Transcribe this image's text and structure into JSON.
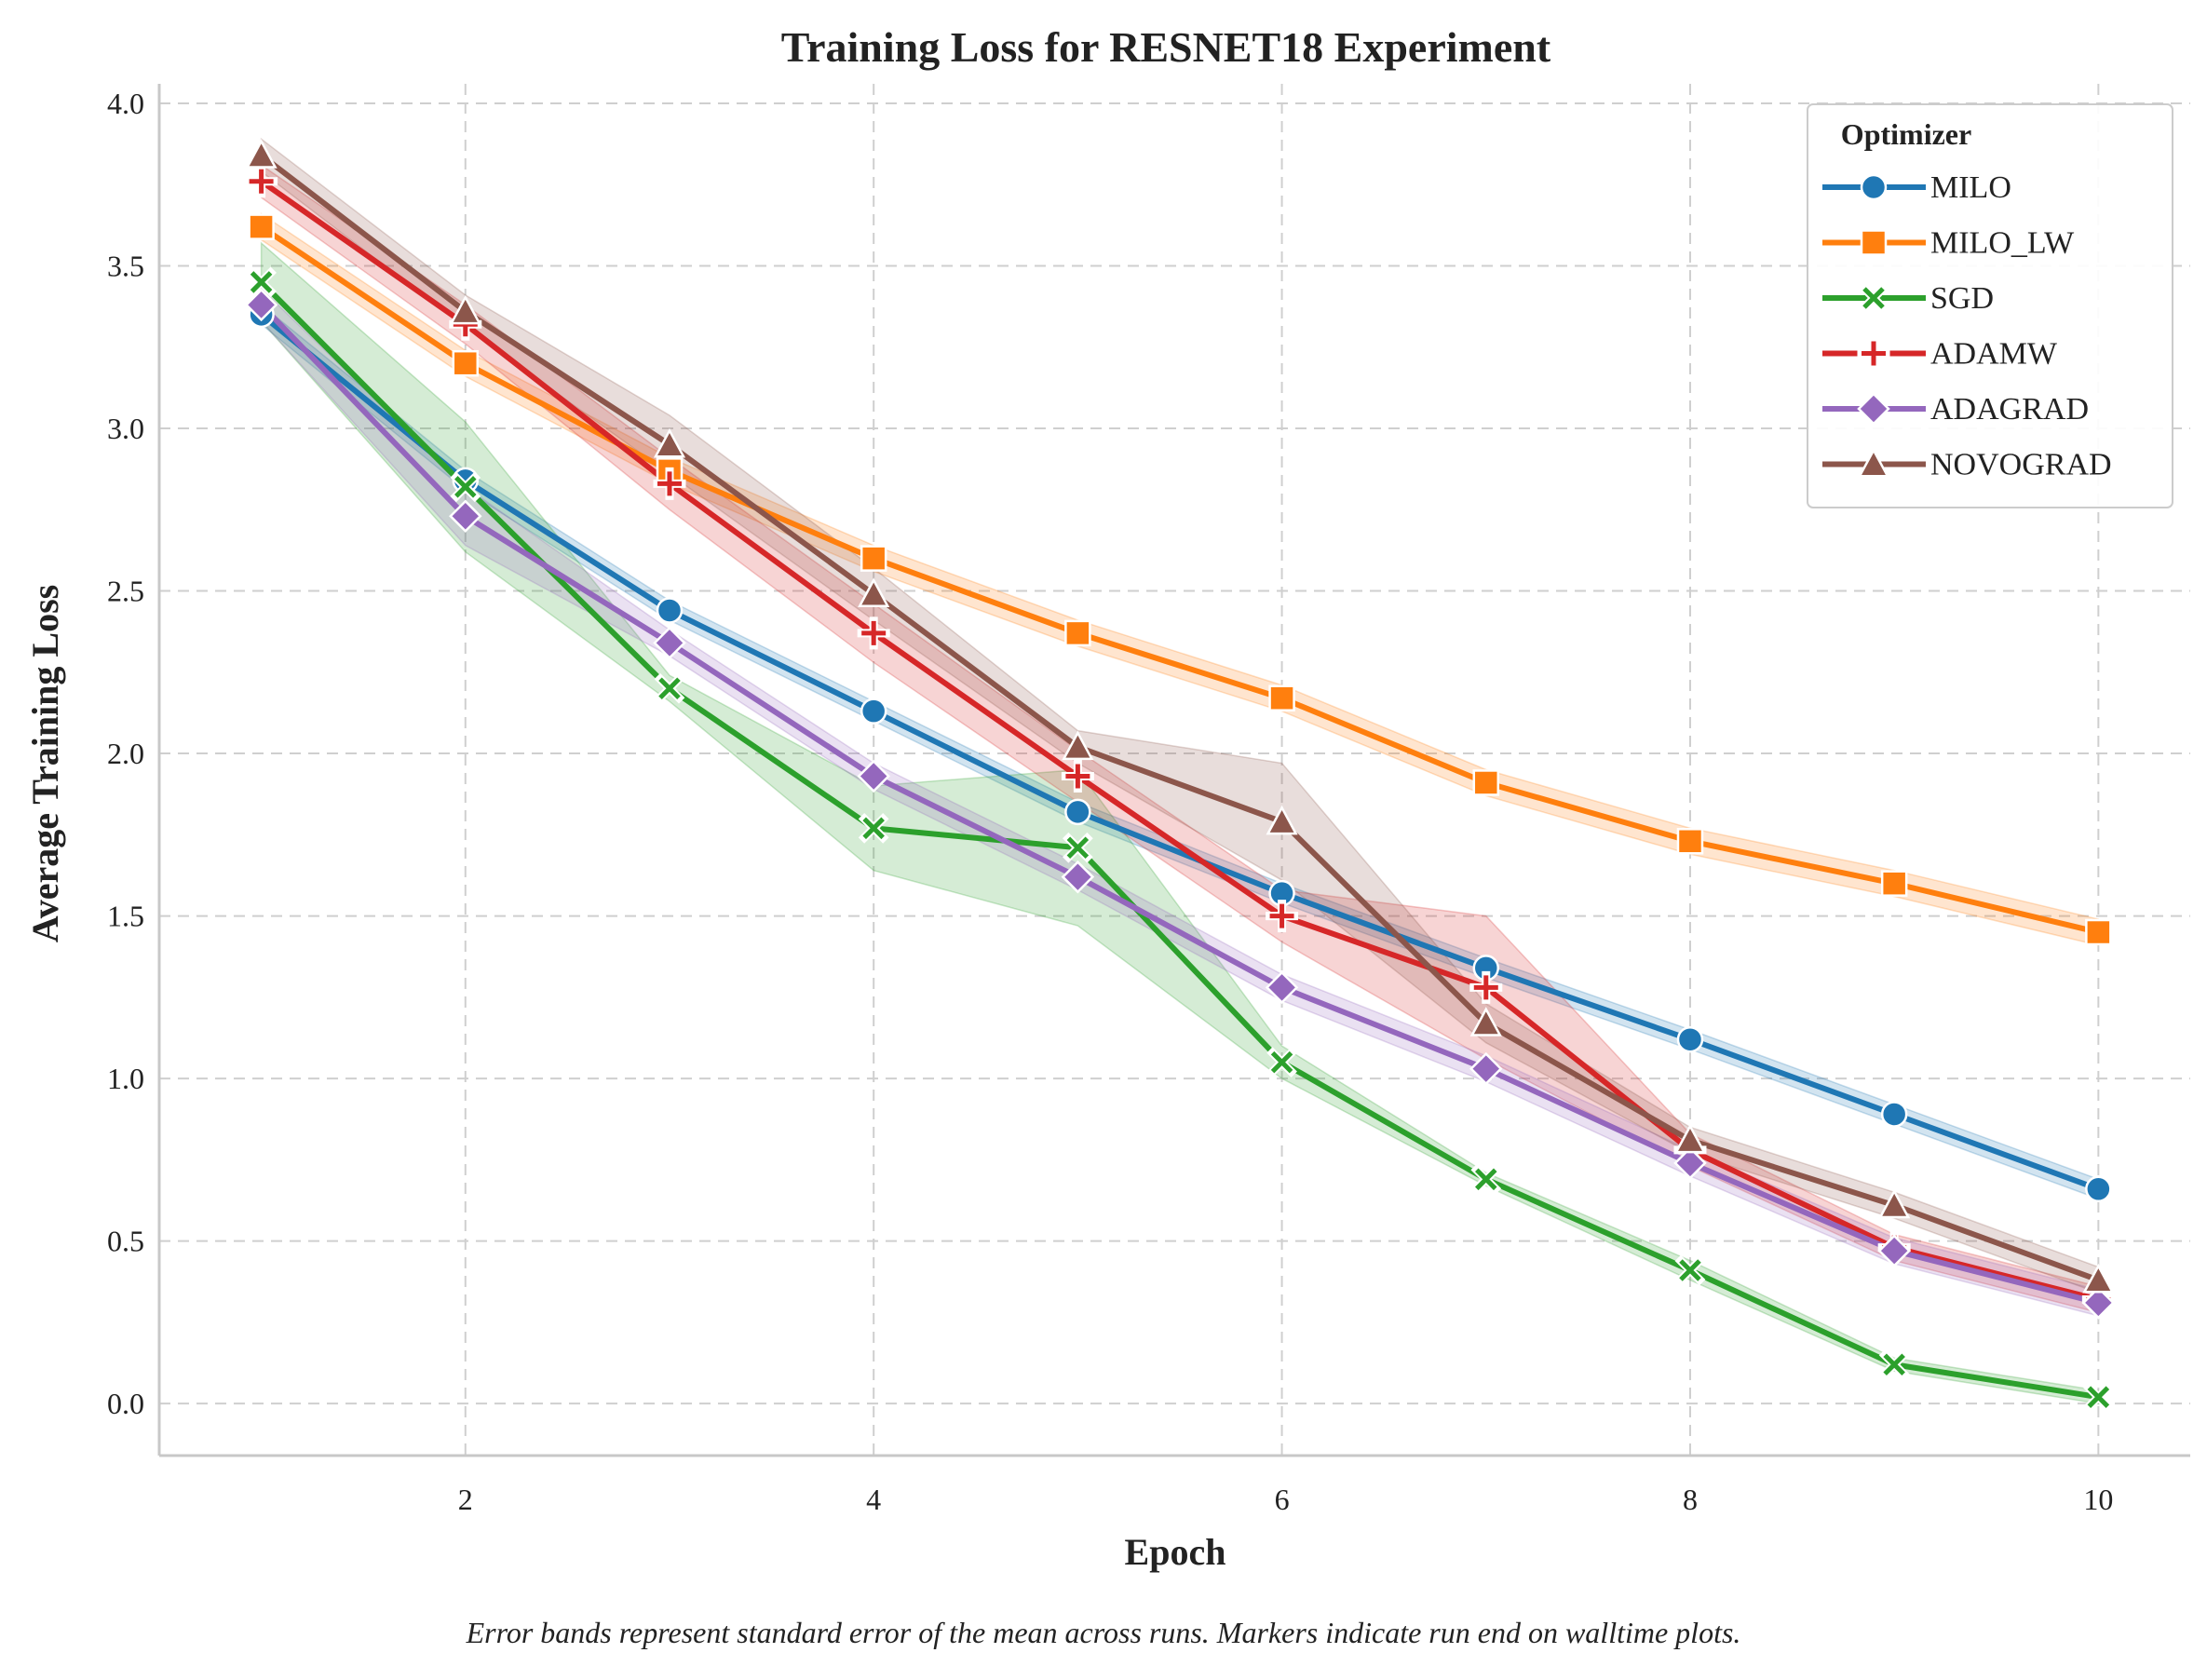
{
  "chart_data": {
    "type": "line",
    "title": "Training Loss for RESNET18 Experiment",
    "xlabel": "Epoch",
    "ylabel": "Average Training Loss",
    "xlim": [
      0.5,
      10.45
    ],
    "ylim": [
      -0.16,
      4.06
    ],
    "xticks": [
      2,
      4,
      6,
      8,
      10
    ],
    "yticks": [
      0.0,
      0.5,
      1.0,
      1.5,
      2.0,
      2.5,
      3.0,
      3.5,
      4.0
    ],
    "grid": true,
    "legend": {
      "title": "Optimizer",
      "position": "top-right"
    },
    "x": [
      1,
      2,
      3,
      4,
      5,
      6,
      7,
      8,
      9,
      10
    ],
    "series": [
      {
        "name": "MILO",
        "color": "#1f77b4",
        "marker": "circle",
        "values": [
          3.35,
          2.84,
          2.44,
          2.13,
          1.82,
          1.57,
          1.34,
          1.12,
          0.89,
          0.66
        ],
        "err": [
          0.03,
          0.03,
          0.03,
          0.03,
          0.03,
          0.03,
          0.03,
          0.03,
          0.03,
          0.03
        ]
      },
      {
        "name": "MILO_LW",
        "color": "#ff7f0e",
        "marker": "square",
        "values": [
          3.62,
          3.2,
          2.87,
          2.6,
          2.37,
          2.17,
          1.91,
          1.73,
          1.6,
          1.45
        ],
        "err": [
          0.04,
          0.04,
          0.04,
          0.04,
          0.04,
          0.04,
          0.04,
          0.04,
          0.04,
          0.04
        ]
      },
      {
        "name": "SGD",
        "color": "#2ca02c",
        "marker": "x",
        "values": [
          3.45,
          2.82,
          2.2,
          1.77,
          1.71,
          1.05,
          0.69,
          0.41,
          0.12,
          0.02
        ],
        "err": [
          0.12,
          0.2,
          0.04,
          0.13,
          0.24,
          0.05,
          0.02,
          0.03,
          0.02,
          0.02
        ]
      },
      {
        "name": "ADAMW",
        "color": "#d62728",
        "marker": "plus",
        "values": [
          3.76,
          3.32,
          2.83,
          2.37,
          1.93,
          1.5,
          1.28,
          0.78,
          0.48,
          0.32
        ],
        "err": [
          0.05,
          0.06,
          0.08,
          0.09,
          0.08,
          0.08,
          0.22,
          0.05,
          0.04,
          0.04
        ]
      },
      {
        "name": "ADAGRAD",
        "color": "#9467bd",
        "marker": "diamond",
        "values": [
          3.38,
          2.73,
          2.34,
          1.93,
          1.62,
          1.28,
          1.03,
          0.74,
          0.47,
          0.31
        ],
        "err": [
          0.05,
          0.09,
          0.04,
          0.04,
          0.04,
          0.04,
          0.04,
          0.04,
          0.04,
          0.04
        ]
      },
      {
        "name": "NOVOGRAD",
        "color": "#8c564b",
        "marker": "triangle",
        "values": [
          3.84,
          3.36,
          2.95,
          2.49,
          2.02,
          1.79,
          1.17,
          0.81,
          0.61,
          0.38
        ],
        "err": [
          0.05,
          0.05,
          0.09,
          0.08,
          0.05,
          0.18,
          0.06,
          0.04,
          0.04,
          0.04
        ]
      }
    ]
  },
  "caption": "Error bands represent standard error of the mean across runs. Markers indicate run end on walltime plots."
}
